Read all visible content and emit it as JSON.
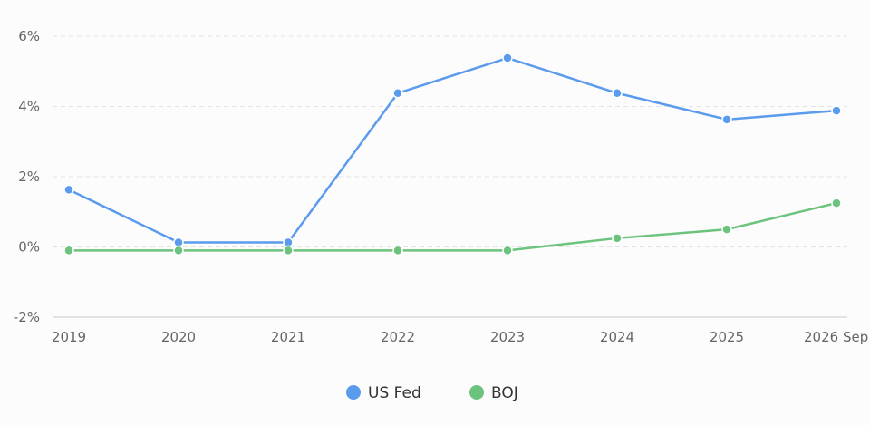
{
  "chart_data": {
    "type": "line",
    "categories": [
      "2019",
      "2020",
      "2021",
      "2022",
      "2023",
      "2024",
      "2025",
      "2026 Sep"
    ],
    "y_ticks": [
      6,
      4,
      2,
      0,
      -2
    ],
    "y_tick_labels": [
      "6%",
      "4%",
      "2%",
      "0%",
      "-2%"
    ],
    "ylim": [
      -2,
      6
    ],
    "grid": true,
    "legend_position": "bottom-center",
    "series": [
      {
        "name": "US Fed",
        "color": "#5b9bee",
        "values": [
          1.63,
          0.13,
          0.13,
          4.38,
          5.38,
          4.38,
          3.63,
          3.88
        ]
      },
      {
        "name": "BOJ",
        "color": "#6cc37d",
        "values": [
          -0.1,
          -0.1,
          -0.1,
          -0.1,
          -0.1,
          0.25,
          0.5,
          1.25
        ]
      }
    ]
  }
}
